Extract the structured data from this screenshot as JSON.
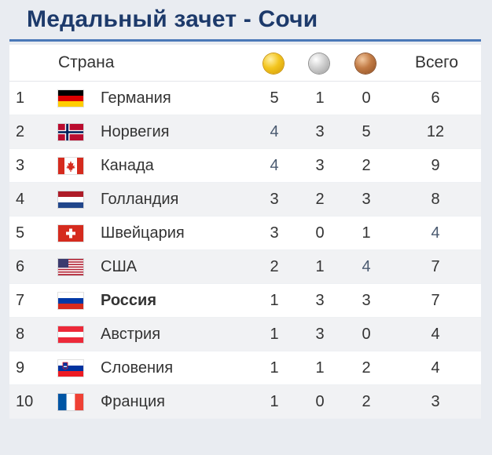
{
  "title": "Медальный зачет - Сочи",
  "header": {
    "country": "Страна",
    "total": "Всего"
  },
  "icons": {
    "gold": "gold-medal-icon",
    "silver": "silver-medal-icon",
    "bronze": "bronze-medal-icon"
  },
  "colors": {
    "title": "#1d3a6b",
    "rule": "#4a78b8"
  },
  "rows": [
    {
      "rank": "1",
      "flag": "germany-flag-icon",
      "country": "Германия",
      "gold": "5",
      "silver": "1",
      "bronze": "0",
      "total": "6"
    },
    {
      "rank": "2",
      "flag": "norway-flag-icon",
      "country": "Норвегия",
      "gold": "4",
      "silver": "3",
      "bronze": "5",
      "total": "12"
    },
    {
      "rank": "3",
      "flag": "canada-flag-icon",
      "country": "Канада",
      "gold": "4",
      "silver": "3",
      "bronze": "2",
      "total": "9"
    },
    {
      "rank": "4",
      "flag": "netherlands-flag-icon",
      "country": "Голландия",
      "gold": "3",
      "silver": "2",
      "bronze": "3",
      "total": "8"
    },
    {
      "rank": "5",
      "flag": "switzerland-flag-icon",
      "country": "Швейцария",
      "gold": "3",
      "silver": "0",
      "bronze": "1",
      "total": "4"
    },
    {
      "rank": "6",
      "flag": "usa-flag-icon",
      "country": "США",
      "gold": "2",
      "silver": "1",
      "bronze": "4",
      "total": "7"
    },
    {
      "rank": "7",
      "flag": "russia-flag-icon",
      "country": "Россия",
      "gold": "1",
      "silver": "3",
      "bronze": "3",
      "total": "7"
    },
    {
      "rank": "8",
      "flag": "austria-flag-icon",
      "country": "Австрия",
      "gold": "1",
      "silver": "3",
      "bronze": "0",
      "total": "4"
    },
    {
      "rank": "9",
      "flag": "slovenia-flag-icon",
      "country": "Словения",
      "gold": "1",
      "silver": "1",
      "bronze": "2",
      "total": "4"
    },
    {
      "rank": "10",
      "flag": "france-flag-icon",
      "country": "Франция",
      "gold": "1",
      "silver": "0",
      "bronze": "2",
      "total": "3"
    }
  ]
}
